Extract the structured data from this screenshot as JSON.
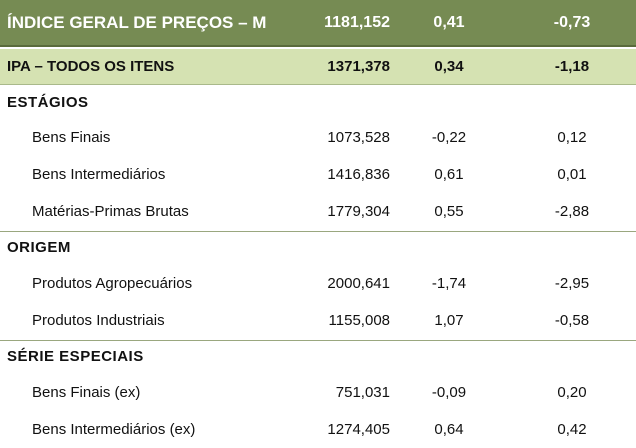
{
  "main_row": {
    "label": "ÍNDICE GERAL DE PREÇOS – M",
    "index": "1181,152",
    "v1": "0,41",
    "v2": "-0,73"
  },
  "ipa_row": {
    "label": "IPA – TODOS OS ITENS",
    "index": "1371,378",
    "v1": "0,34",
    "v2": "-1,18"
  },
  "sections": [
    {
      "title": "ESTÁGIOS",
      "rows": [
        {
          "label": "Bens Finais",
          "index": "1073,528",
          "v1": "-0,22",
          "v2": "0,12"
        },
        {
          "label": "Bens Intermediários",
          "index": "1416,836",
          "v1": "0,61",
          "v2": "0,01"
        },
        {
          "label": "Matérias-Primas Brutas",
          "index": "1779,304",
          "v1": "0,55",
          "v2": "-2,88"
        }
      ]
    },
    {
      "title": "ORIGEM",
      "rows": [
        {
          "label": "Produtos Agropecuários",
          "index": "2000,641",
          "v1": "-1,74",
          "v2": "-2,95"
        },
        {
          "label": "Produtos Industriais",
          "index": "1155,008",
          "v1": "1,07",
          "v2": "-0,58"
        }
      ]
    },
    {
      "title": "SÉRIE ESPECIAIS",
      "rows": [
        {
          "label": "Bens Finais (ex)",
          "index": "751,031",
          "v1": "-0,09",
          "v2": "0,20"
        },
        {
          "label": "Bens Intermediários (ex)",
          "index": "1274,405",
          "v1": "0,64",
          "v2": "0,42"
        }
      ]
    }
  ]
}
